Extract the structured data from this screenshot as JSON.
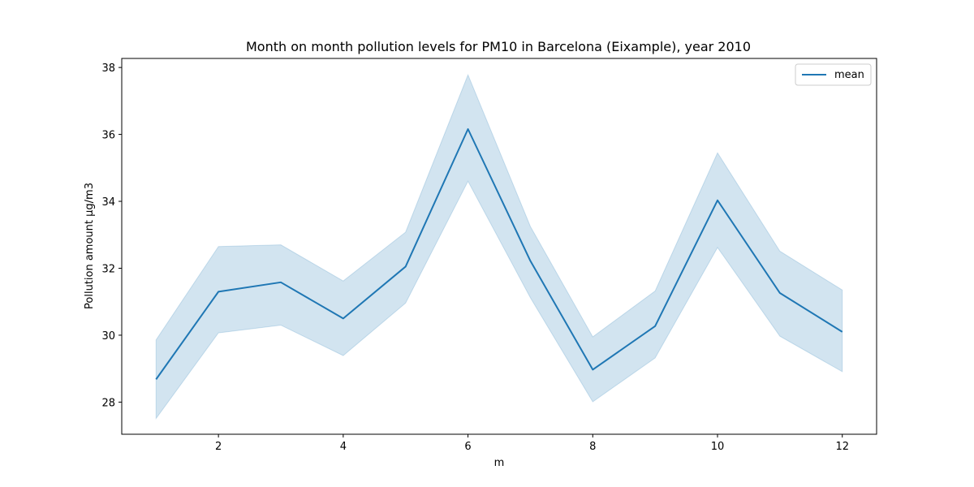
{
  "chart_data": {
    "type": "line",
    "title": "Month on month pollution levels for PM10 in Barcelona (Eixample), year 2010",
    "xlabel": "m",
    "ylabel": "Pollution amount µg/m3",
    "xlim": [
      0.45,
      12.55
    ],
    "ylim": [
      27.04,
      38.27
    ],
    "xticks": [
      2,
      4,
      6,
      8,
      10,
      12
    ],
    "yticks": [
      28,
      30,
      32,
      34,
      36,
      38
    ],
    "legend": "top-right",
    "grid": false,
    "x": [
      1,
      2,
      3,
      4,
      5,
      6,
      7,
      8,
      9,
      10,
      11,
      12
    ],
    "series": [
      {
        "name": "mean",
        "color": "#1f77b4",
        "values": [
          28.68,
          31.3,
          31.58,
          30.5,
          32.05,
          36.16,
          32.22,
          28.97,
          30.27,
          34.03,
          31.26,
          30.1
        ],
        "ci_upper": [
          29.86,
          32.65,
          32.7,
          31.62,
          33.08,
          37.78,
          33.25,
          29.95,
          31.32,
          35.45,
          32.51,
          31.35
        ],
        "ci_lower": [
          27.51,
          30.07,
          30.3,
          29.39,
          30.96,
          34.6,
          31.12,
          28.01,
          29.32,
          32.62,
          29.97,
          28.91
        ],
        "band_color": "#1f77b4"
      }
    ]
  }
}
